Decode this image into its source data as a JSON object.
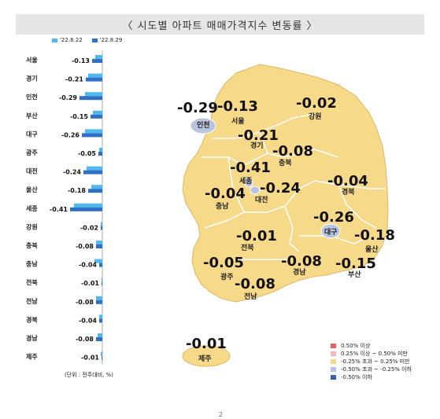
{
  "title": "〈 시도별 아파트 매매가격지수 변동률 〉",
  "unit_note": "(단위 : 전주대비, %)",
  "page_number": "2",
  "colors": {
    "series_prev": "#4fb8ee",
    "series_curr": "#2f6fc4",
    "map_fill": "#f7d98a",
    "map_stroke": "#ffffff",
    "map_city": "#b9c4e0"
  },
  "chart_data": {
    "type": "bar",
    "orientation": "horizontal",
    "categories": [
      "서울",
      "경기",
      "인천",
      "부산",
      "대구",
      "광주",
      "대전",
      "울산",
      "세종",
      "강원",
      "충북",
      "충남",
      "전북",
      "전남",
      "경북",
      "경남",
      "제주"
    ],
    "series": [
      {
        "name": "'22.8.22",
        "values": [
          -0.09,
          -0.18,
          -0.22,
          -0.12,
          -0.22,
          -0.04,
          -0.2,
          -0.14,
          -0.36,
          -0.02,
          -0.08,
          -0.1,
          -0.01,
          -0.08,
          -0.04,
          -0.06,
          -0.02
        ]
      },
      {
        "name": "'22.8.29",
        "values": [
          -0.13,
          -0.21,
          -0.29,
          -0.15,
          -0.26,
          -0.05,
          -0.24,
          -0.18,
          -0.41,
          -0.02,
          -0.08,
          -0.04,
          -0.01,
          -0.08,
          -0.04,
          -0.08,
          -0.01
        ]
      }
    ],
    "labels": [
      "-0.13",
      "-0.21",
      "-0.29",
      "-0.15",
      "-0.26",
      "-0.05",
      "-0.24",
      "-0.18",
      "-0.41",
      "-0.02",
      "-0.08",
      "-0.04",
      "-0.01",
      "-0.08",
      "-0.04",
      "-0.08",
      "-0.01"
    ]
  },
  "map": {
    "regions": [
      {
        "name": "인천",
        "value": "-0.29"
      },
      {
        "name": "서울",
        "value": "-0.13"
      },
      {
        "name": "강원",
        "value": "-0.02"
      },
      {
        "name": "경기",
        "value": "-0.21"
      },
      {
        "name": "충북",
        "value": "-0.08"
      },
      {
        "name": "세종",
        "value": "-0.41"
      },
      {
        "name": "대전",
        "value": "-0.24"
      },
      {
        "name": "충남",
        "value": "-0.04"
      },
      {
        "name": "경북",
        "value": "-0.04"
      },
      {
        "name": "대구",
        "value": "-0.26"
      },
      {
        "name": "울산",
        "value": "-0.18"
      },
      {
        "name": "전북",
        "value": "-0.01"
      },
      {
        "name": "광주",
        "value": "-0.05"
      },
      {
        "name": "경남",
        "value": "-0.08"
      },
      {
        "name": "부산",
        "value": "-0.15"
      },
      {
        "name": "전남",
        "value": "-0.08"
      },
      {
        "name": "제주",
        "value": "-0.01"
      }
    ],
    "legend": [
      {
        "label": "0.50% 이상",
        "color": "#e06666"
      },
      {
        "label": "0.25% 이상 ~ 0.50% 미만",
        "color": "#f4b8b8"
      },
      {
        "label": "-0.25% 초과 ~ 0.25% 미만",
        "color": "#f7d98a"
      },
      {
        "label": "-0.50% 초과 ~ -0.25% 이하",
        "color": "#b9c4e0"
      },
      {
        "label": "-0.50% 이하",
        "color": "#3a5fb0"
      }
    ]
  }
}
